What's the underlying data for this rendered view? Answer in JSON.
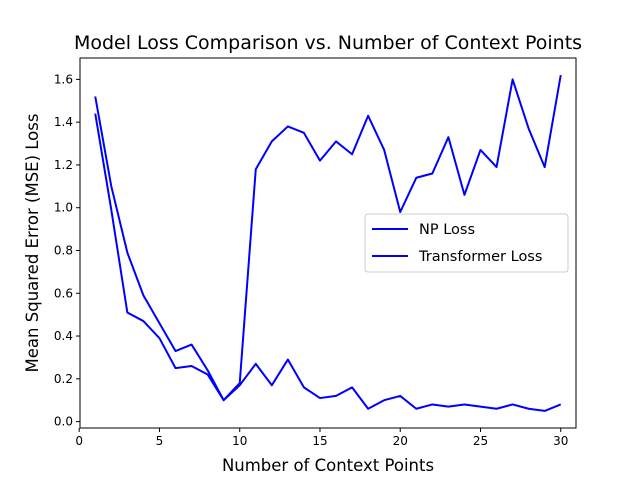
{
  "chart_data": {
    "type": "line",
    "title": "Model Loss Comparison vs. Number of Context Points",
    "xlabel": "Number of Context Points",
    "ylabel": "Mean Squared Error (MSE) Loss",
    "xlim": [
      0.05,
      30.95
    ],
    "ylim": [
      -0.03,
      1.7
    ],
    "xticks": [
      0,
      5,
      10,
      15,
      20,
      25,
      30
    ],
    "xtick_labels": [
      "0",
      "5",
      "10",
      "15",
      "20",
      "25",
      "30"
    ],
    "yticks": [
      0.0,
      0.2,
      0.4,
      0.6,
      0.8,
      1.0,
      1.2,
      1.4,
      1.6
    ],
    "ytick_labels": [
      "0.0",
      "0.2",
      "0.4",
      "0.6",
      "0.8",
      "1.0",
      "1.2",
      "1.4",
      "1.6"
    ],
    "grid": false,
    "legend_position": "center-right",
    "x": [
      1,
      2,
      3,
      4,
      5,
      6,
      7,
      8,
      9,
      10,
      11,
      12,
      13,
      14,
      15,
      16,
      17,
      18,
      19,
      20,
      21,
      22,
      23,
      24,
      25,
      26,
      27,
      28,
      29,
      30
    ],
    "series": [
      {
        "name": "NP Loss",
        "color": "#0000ff",
        "values": [
          1.52,
          1.1,
          0.79,
          0.59,
          0.46,
          0.33,
          0.36,
          0.24,
          0.1,
          0.18,
          1.18,
          1.31,
          1.38,
          1.35,
          1.22,
          1.31,
          1.25,
          1.43,
          1.27,
          0.98,
          1.14,
          1.16,
          1.33,
          1.06,
          1.27,
          1.19,
          1.6,
          1.37,
          1.19,
          1.62
        ]
      },
      {
        "name": "Transformer Loss",
        "color": "#0000ff",
        "values": [
          1.44,
          0.99,
          0.51,
          0.47,
          0.39,
          0.25,
          0.26,
          0.22,
          0.1,
          0.17,
          0.27,
          0.17,
          0.29,
          0.16,
          0.11,
          0.12,
          0.16,
          0.06,
          0.1,
          0.12,
          0.06,
          0.08,
          0.07,
          0.08,
          0.07,
          0.06,
          0.08,
          0.06,
          0.05,
          0.08
        ]
      }
    ]
  }
}
